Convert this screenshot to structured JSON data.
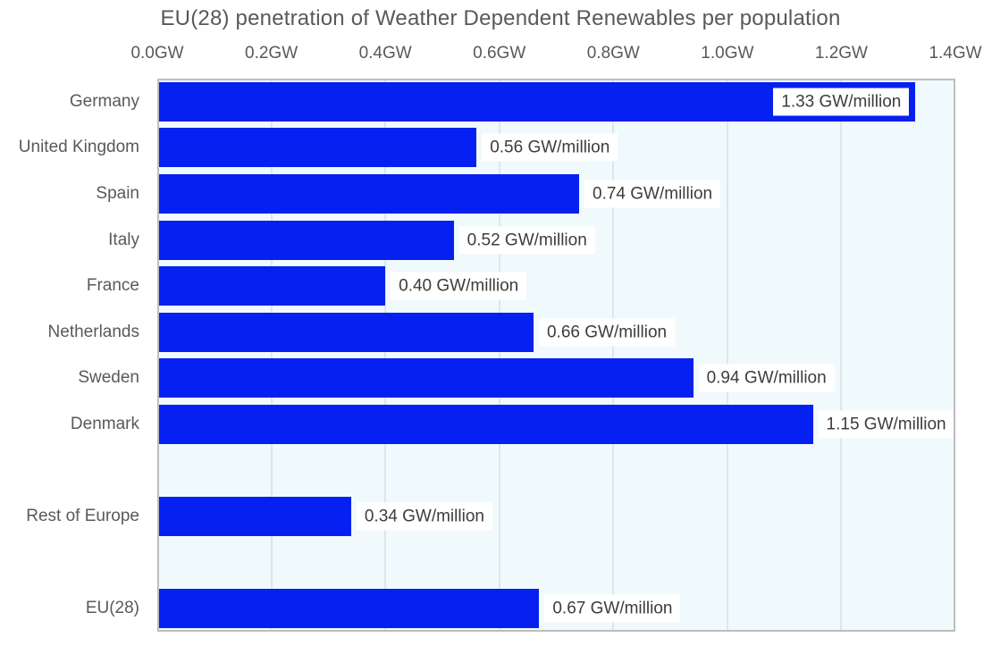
{
  "title": "EU(28) penetration of Weather Dependent Renewables per population",
  "colors": {
    "bar": "#0520F0",
    "plot_background": "#F0FAFC",
    "gridline": "#DCE7EA",
    "frame_border": "#BDBDBD",
    "title_text": "#595959",
    "axis_text": "#595959",
    "value_label_text": "#3C3C3C",
    "value_label_background": "#FFFFFF"
  },
  "chart_data": {
    "type": "bar",
    "orientation": "horizontal",
    "title": "EU(28) penetration of Weather Dependent Renewables per population",
    "xlabel": "",
    "ylabel": "",
    "xlim": [
      0,
      1.4
    ],
    "x_axis_position": "top",
    "grid": true,
    "legend": false,
    "x_ticks": [
      "0.0GW",
      "0.2GW",
      "0.4GW",
      "0.6GW",
      "0.8GW",
      "1.0GW",
      "1.2GW",
      "1.4GW"
    ],
    "unit": "GW/million",
    "rows": [
      {
        "category": "Germany",
        "value": 1.33,
        "label": "1.33 GW/million",
        "label_position": "inside"
      },
      {
        "category": "United Kingdom",
        "value": 0.56,
        "label": "0.56 GW/million",
        "label_position": "outside"
      },
      {
        "category": "Spain",
        "value": 0.74,
        "label": "0.74 GW/million",
        "label_position": "outside"
      },
      {
        "category": "Italy",
        "value": 0.52,
        "label": "0.52 GW/million",
        "label_position": "outside"
      },
      {
        "category": "France",
        "value": 0.4,
        "label": "0.40 GW/million",
        "label_position": "outside"
      },
      {
        "category": "Netherlands",
        "value": 0.66,
        "label": "0.66 GW/million",
        "label_position": "outside"
      },
      {
        "category": "Sweden",
        "value": 0.94,
        "label": "0.94 GW/million",
        "label_position": "outside"
      },
      {
        "category": "Denmark",
        "value": 1.15,
        "label": "1.15 GW/million",
        "label_position": "outside"
      },
      {
        "category": "",
        "value": null,
        "label": "",
        "label_position": "none"
      },
      {
        "category": "Rest of Europe",
        "value": 0.34,
        "label": "0.34 GW/million",
        "label_position": "outside"
      },
      {
        "category": "",
        "value": null,
        "label": "",
        "label_position": "none"
      },
      {
        "category": "EU(28)",
        "value": 0.67,
        "label": "0.67 GW/million",
        "label_position": "outside"
      }
    ]
  }
}
